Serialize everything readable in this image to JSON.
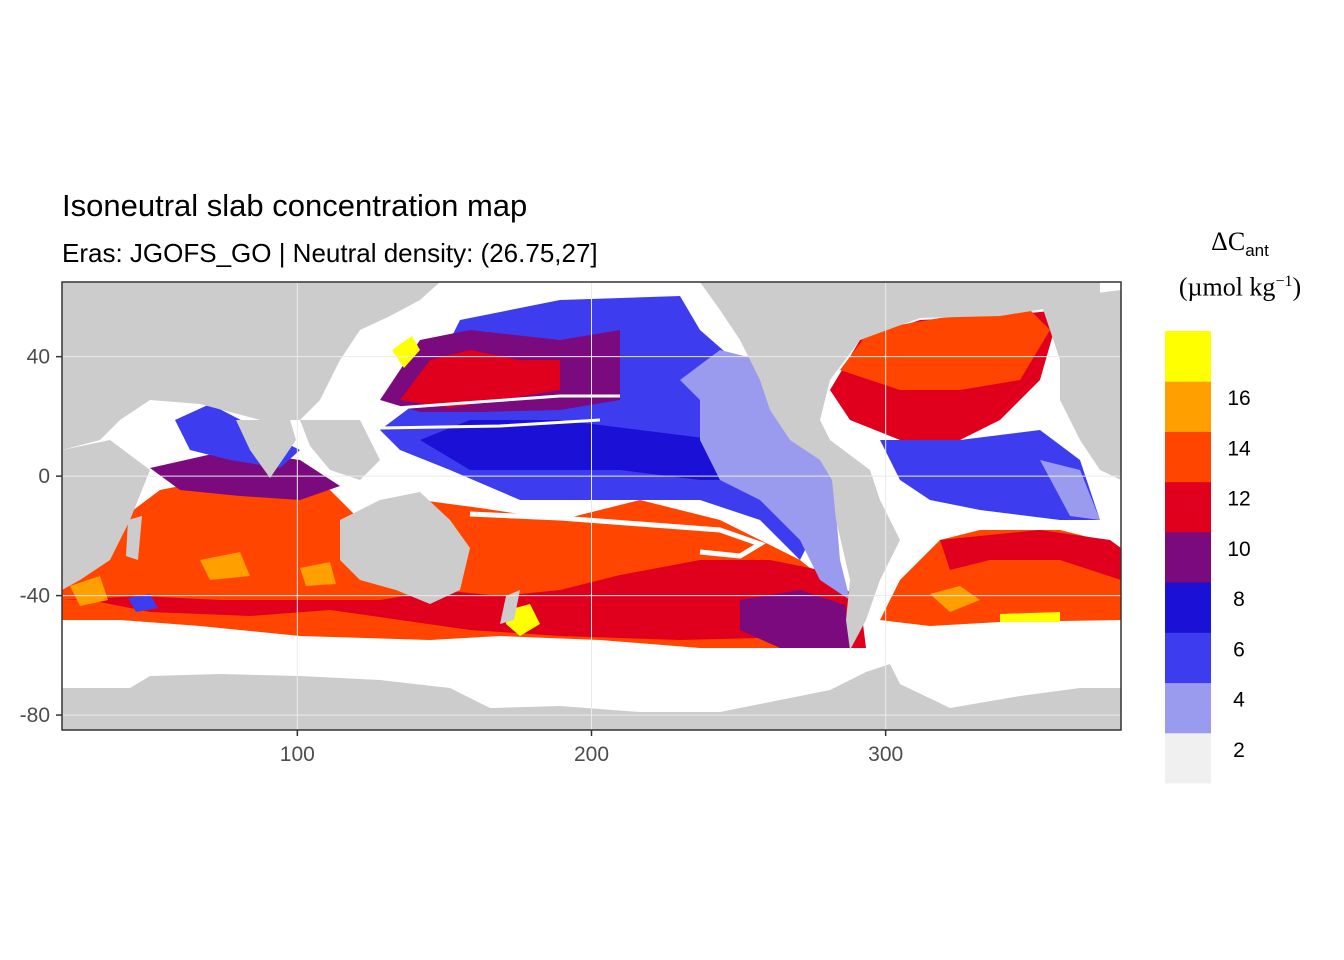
{
  "title": "Isoneutral slab concentration map",
  "subtitle": "Eras: JGOFS_GO | Neutral density: (26.75,27]",
  "legend": {
    "symbol": "ΔC",
    "symbol_sub": "ant",
    "unit_open": "(µmol kg",
    "unit_sup": "−1",
    "unit_close": ")",
    "bins": [
      {
        "label": "2",
        "color": "#f0f0f0"
      },
      {
        "label": "4",
        "color": "#9a9aee"
      },
      {
        "label": "6",
        "color": "#3d3def"
      },
      {
        "label": "8",
        "color": "#1a10d6"
      },
      {
        "label": "10",
        "color": "#7a0a7d"
      },
      {
        "label": "12",
        "color": "#e0001e"
      },
      {
        "label": "14",
        "color": "#ff4500"
      },
      {
        "label": "16",
        "color": "#ffa000"
      },
      {
        "label": "",
        "color": "#ffff00"
      }
    ]
  },
  "axes": {
    "x_ticks": [
      {
        "value": 100,
        "label": "100"
      },
      {
        "value": 200,
        "label": "200"
      },
      {
        "value": 300,
        "label": "300"
      }
    ],
    "y_ticks": [
      {
        "value": 40,
        "label": "40"
      },
      {
        "value": 0,
        "label": "0"
      },
      {
        "value": -40,
        "label": "-40"
      },
      {
        "value": -80,
        "label": "-80"
      }
    ],
    "xlim": [
      20,
      380
    ],
    "ylim": [
      -85,
      65
    ]
  },
  "colors": {
    "land": "#cccccc",
    "no_data": "#ffffff",
    "panel_border": "#333333",
    "grid": "#ebebeb"
  }
}
